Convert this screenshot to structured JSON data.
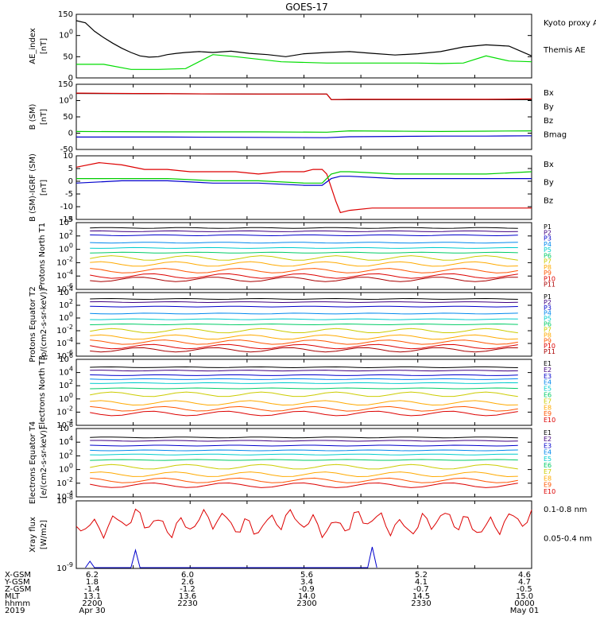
{
  "title": "GOES-17",
  "chart_data": [
    {
      "type": "line",
      "ylabel": "AE_index [nT]",
      "ylim": [
        0,
        150
      ],
      "yticks": [
        "0",
        "50",
        "100",
        "150"
      ],
      "legend": [
        {
          "name": "Kyoto proxy AE",
          "color": "#00dd00"
        },
        {
          "name": "Themis AE",
          "color": "#000000"
        }
      ],
      "series": [
        {
          "name": "Themis AE",
          "color": "#000000",
          "x": [
            0,
            2,
            4,
            6,
            8,
            10,
            12,
            14,
            16,
            18,
            20,
            22,
            24,
            27,
            30,
            34,
            38,
            42,
            46,
            50,
            55,
            60,
            65,
            70,
            75,
            80,
            85,
            90,
            95,
            100
          ],
          "y": [
            135,
            130,
            110,
            95,
            82,
            70,
            60,
            52,
            49,
            50,
            55,
            58,
            60,
            62,
            60,
            63,
            58,
            55,
            50,
            57,
            60,
            62,
            58,
            54,
            57,
            62,
            73,
            78,
            75,
            52
          ]
        },
        {
          "name": "Kyoto proxy AE",
          "color": "#00dd00",
          "x": [
            0,
            6,
            12,
            18,
            24,
            30,
            35,
            45,
            55,
            60,
            65,
            70,
            75,
            80,
            85,
            90,
            95,
            100
          ],
          "y": [
            32,
            32,
            20,
            20,
            22,
            55,
            50,
            38,
            35,
            35,
            35,
            35,
            35,
            34,
            35,
            52,
            40,
            38
          ]
        }
      ]
    },
    {
      "type": "line",
      "ylabel": "B (SM) [nT]",
      "ylim": [
        -60,
        140
      ],
      "yticks": [
        "-50",
        "0",
        "50",
        "100",
        "150"
      ],
      "legend": [
        {
          "name": "Bx",
          "color": "#0000cc"
        },
        {
          "name": "By",
          "color": "#00cc00"
        },
        {
          "name": "Bz",
          "color": "#dd0000"
        },
        {
          "name": "Bmag",
          "color": "#000000"
        }
      ],
      "series": [
        {
          "name": "Bmag",
          "color": "#000000",
          "x": [
            0,
            20,
            40,
            55,
            56,
            60,
            70,
            80,
            90,
            100
          ],
          "y": [
            112,
            111,
            110,
            110,
            93,
            93,
            93,
            93,
            93,
            93
          ]
        },
        {
          "name": "Bz",
          "color": "#dd0000",
          "x": [
            0,
            20,
            40,
            55,
            56,
            60,
            70,
            80,
            90,
            100
          ],
          "y": [
            113,
            111,
            110,
            110,
            93,
            94,
            94,
            94,
            94,
            95
          ]
        },
        {
          "name": "By",
          "color": "#00cc00",
          "x": [
            0,
            20,
            40,
            55,
            60,
            70,
            80,
            90,
            100
          ],
          "y": [
            -5,
            -6,
            -6,
            -7,
            -3,
            -4,
            -5,
            -4,
            -3
          ]
        },
        {
          "name": "Bx",
          "color": "#0000cc",
          "x": [
            0,
            20,
            40,
            55,
            60,
            70,
            80,
            90,
            100
          ],
          "y": [
            -22,
            -22,
            -23,
            -24,
            -21,
            -20,
            -19,
            -19,
            -18
          ]
        }
      ]
    },
    {
      "type": "line",
      "ylabel": "B (SM)-IGRF (SM) [nT]",
      "ylim": [
        -16,
        12
      ],
      "yticks": [
        "-15",
        "-10",
        "-5",
        "0",
        "5",
        "10"
      ],
      "legend": [
        {
          "name": "Bx",
          "color": "#0000cc"
        },
        {
          "name": "By",
          "color": "#00cc00"
        },
        {
          "name": "Bz",
          "color": "#dd0000"
        }
      ],
      "series": [
        {
          "name": "Bz",
          "color": "#dd0000",
          "x": [
            0,
            5,
            10,
            15,
            20,
            25,
            30,
            35,
            40,
            45,
            50,
            52,
            54,
            55,
            57,
            58,
            60,
            65,
            70,
            75,
            80,
            85,
            90,
            95,
            100
          ],
          "y": [
            7,
            9,
            8,
            6,
            6,
            5,
            5,
            5,
            4,
            5,
            5,
            6,
            6,
            4,
            -8,
            -13,
            -12,
            -11,
            -11,
            -11,
            -11,
            -11,
            -11,
            -11,
            -11
          ]
        },
        {
          "name": "By",
          "color": "#00cc00",
          "x": [
            0,
            10,
            20,
            30,
            40,
            50,
            54,
            56,
            58,
            60,
            70,
            80,
            90,
            100
          ],
          "y": [
            2,
            2,
            2,
            1,
            1,
            0,
            0,
            4,
            5,
            5,
            4,
            4,
            4,
            5
          ]
        },
        {
          "name": "Bx",
          "color": "#0000cc",
          "x": [
            0,
            10,
            20,
            30,
            40,
            50,
            54,
            56,
            58,
            60,
            70,
            80,
            90,
            100
          ],
          "y": [
            0,
            1,
            1,
            0,
            0,
            -1,
            -1,
            2,
            3,
            3,
            2,
            2,
            2,
            2
          ]
        }
      ]
    },
    {
      "type": "line",
      "ylabel": "Protons North T1",
      "ylog": true,
      "yticks": [
        "10-6",
        "10-4",
        "10-2",
        "100",
        "102",
        "104"
      ],
      "legend": [
        "P1",
        "P2",
        "P3",
        "P4",
        "P5",
        "P6",
        "P7",
        "P8",
        "P9",
        "P10",
        "P11"
      ],
      "channel_levels_log": [
        3.2,
        2.7,
        2.1,
        1.0,
        0.2,
        -0.5,
        -1.3,
        -2.2,
        -3.2,
        -4.0,
        -4.5
      ]
    },
    {
      "type": "line",
      "ylabel": "Protons Equator T2 [p/(cm2-s-sr-keV)]",
      "ylog": true,
      "yticks": [
        "10-6",
        "10-4",
        "10-2",
        "100",
        "102",
        "104"
      ],
      "legend": [
        "P1",
        "P2",
        "P3",
        "P4",
        "P5",
        "P6",
        "P7",
        "P8",
        "P9",
        "P10",
        "P11"
      ],
      "channel_levels_log": [
        3.0,
        2.5,
        1.8,
        0.7,
        -0.2,
        -1.0,
        -2.0,
        -3.0,
        -3.8,
        -4.5,
        -5.0
      ]
    },
    {
      "type": "line",
      "ylabel": "Electrons North T3",
      "ylog": true,
      "yticks": [
        "10-4",
        "10-2",
        "100",
        "102",
        "104",
        "106"
      ],
      "legend": [
        "E1",
        "E2",
        "E3",
        "E4",
        "E5",
        "E6",
        "E7",
        "E8",
        "E9",
        "E10"
      ],
      "channel_levels_log": [
        4.8,
        4.3,
        3.6,
        3.0,
        2.4,
        1.6,
        0.7,
        -0.6,
        -1.5,
        -2.2
      ]
    },
    {
      "type": "line",
      "ylabel": "Electrons Equator T4 [e/(cm2-s-sr-keV)]",
      "ylog": true,
      "yticks": [
        "10-4",
        "10-2",
        "100",
        "102",
        "104",
        "106"
      ],
      "legend": [
        "E1",
        "E2",
        "E3",
        "E4",
        "E5",
        "E6",
        "E7",
        "E8",
        "E9",
        "E10"
      ],
      "channel_levels_log": [
        4.7,
        4.2,
        3.5,
        2.8,
        2.2,
        1.4,
        0.4,
        -0.7,
        -1.6,
        -2.3
      ]
    },
    {
      "type": "line",
      "ylabel": "Xray flux [W/m2]",
      "ylog": true,
      "yticks": [
        "10-9",
        "10-8"
      ],
      "legend": [
        {
          "name": "0.1-0.8 nm",
          "color": "#dd0000"
        },
        {
          "name": "0.05-0.4 nm",
          "color": "#0000cc"
        }
      ]
    }
  ],
  "xaxis": {
    "rows": [
      {
        "label": "X-GSM",
        "values": [
          "6.2",
          "6.0",
          "5.6",
          "5.2",
          "4.6"
        ]
      },
      {
        "label": "Y-GSM",
        "values": [
          "1.8",
          "2.6",
          "3.4",
          "4.1",
          "4.7"
        ]
      },
      {
        "label": "Z-GSM",
        "values": [
          "-1.4",
          "-1.2",
          "-0.9",
          "-0.7",
          "-0.5"
        ]
      },
      {
        "label": "MLT",
        "values": [
          "13.1",
          "13.6",
          "14.0",
          "14.5",
          "15.0"
        ]
      },
      {
        "label": "hhmm",
        "values": [
          "2200",
          "2230",
          "2300",
          "2330",
          "0000"
        ]
      },
      {
        "label": "2019",
        "values": [
          "Apr 30",
          "",
          "",
          "",
          "May 01"
        ]
      }
    ]
  }
}
